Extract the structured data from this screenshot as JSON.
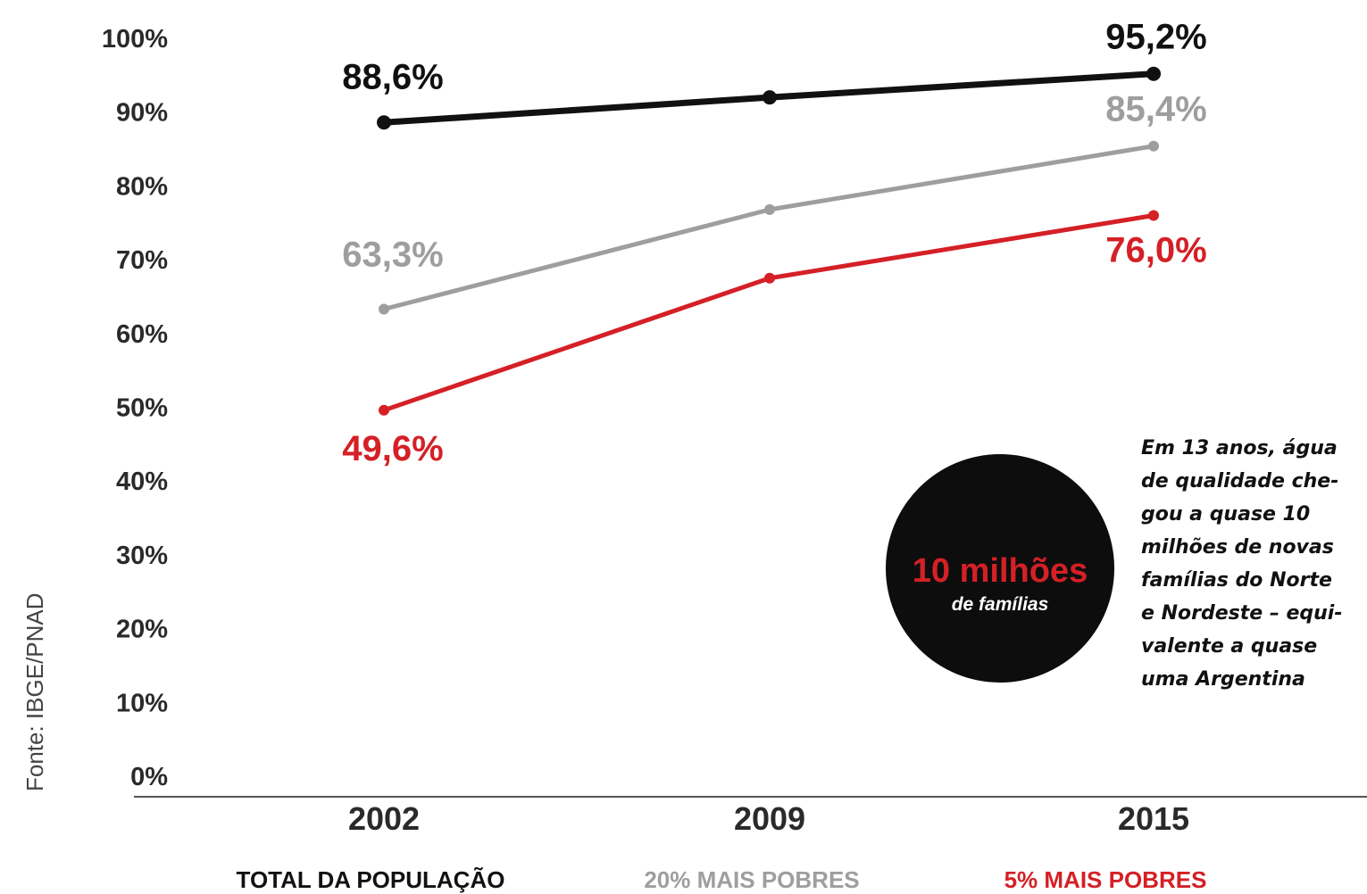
{
  "chart_data": {
    "type": "line",
    "title": "",
    "xlabel": "",
    "ylabel": "",
    "x": [
      "2002",
      "2009",
      "2015"
    ],
    "ylim": [
      0,
      100
    ],
    "y_ticks": [
      "0%",
      "10%",
      "20%",
      "30%",
      "40%",
      "50%",
      "60%",
      "70%",
      "80%",
      "90%",
      "100%"
    ],
    "grid": false,
    "legend_position": "bottom",
    "series": [
      {
        "name": "TOTAL DA POPULAÇÃO",
        "values": [
          88.6,
          92.0,
          95.2
        ],
        "color": "#111111",
        "labels": {
          "start": "88,6%",
          "end": "95,2%"
        }
      },
      {
        "name": "20% MAIS POBRES",
        "values": [
          63.3,
          76.8,
          85.4
        ],
        "color": "#9e9e9e",
        "labels": {
          "start": "63,3%",
          "end": "85,4%"
        }
      },
      {
        "name": "5% MAIS POBRES",
        "values": [
          49.6,
          67.5,
          76.0
        ],
        "color": "#d42026",
        "labels": {
          "start": "49,6%",
          "end": "76,0%"
        }
      }
    ],
    "source": "Fonte: IBGE/PNAD"
  },
  "callout": {
    "number": "10 milhões",
    "unit": "de famílias",
    "number_color": "#d42026",
    "bg_color": "#0d0d0d"
  },
  "annotation": "Em 13 anos, água\nde qualidade che-\ngou a quase 10\nmilhões de novas\nfamílias do Norte\ne Nordeste – equi-\nvalente a quase\numa Argentina"
}
